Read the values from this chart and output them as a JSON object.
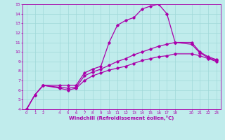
{
  "title": "",
  "xlabel": "Windchill (Refroidissement éolien,°C)",
  "ylabel": "",
  "xlim": [
    -0.5,
    23.5
  ],
  "ylim": [
    4,
    15
  ],
  "xticks": [
    0,
    1,
    2,
    4,
    5,
    6,
    7,
    8,
    9,
    10,
    11,
    12,
    13,
    14,
    15,
    16,
    17,
    18,
    20,
    21,
    22,
    23
  ],
  "yticks": [
    4,
    5,
    6,
    7,
    8,
    9,
    10,
    11,
    12,
    13,
    14,
    15
  ],
  "bg_color": "#c0ecec",
  "grid_color": "#a0d8d8",
  "line_color": "#aa00aa",
  "lines": [
    {
      "x": [
        0,
        1,
        2,
        4,
        5,
        6,
        7,
        8,
        9,
        10,
        11,
        12,
        13,
        14,
        15,
        16,
        17,
        18,
        20,
        21,
        22,
        23
      ],
      "y": [
        4.0,
        5.5,
        6.5,
        6.5,
        6.5,
        6.5,
        7.8,
        8.2,
        8.5,
        11.0,
        12.8,
        13.3,
        13.6,
        14.5,
        14.8,
        15.0,
        14.0,
        11.0,
        11.0,
        10.0,
        9.5,
        9.2
      ],
      "marker": "D",
      "markersize": 1.8,
      "linewidth": 0.9
    },
    {
      "x": [
        0,
        1,
        2,
        4,
        5,
        6,
        7,
        8,
        9,
        10,
        11,
        12,
        13,
        14,
        15,
        16,
        17,
        18,
        20,
        21,
        22,
        23
      ],
      "y": [
        4.0,
        5.5,
        6.5,
        6.3,
        6.2,
        6.3,
        7.5,
        7.9,
        8.2,
        8.6,
        9.0,
        9.3,
        9.7,
        10.0,
        10.3,
        10.6,
        10.8,
        11.0,
        10.8,
        9.9,
        9.4,
        9.1
      ],
      "marker": "D",
      "markersize": 1.8,
      "linewidth": 0.9
    },
    {
      "x": [
        0,
        1,
        2,
        4,
        5,
        6,
        7,
        8,
        9,
        10,
        11,
        12,
        13,
        14,
        15,
        16,
        17,
        18,
        20,
        21,
        22,
        23
      ],
      "y": [
        4.0,
        5.5,
        6.5,
        6.2,
        6.0,
        6.2,
        7.0,
        7.5,
        7.8,
        8.1,
        8.3,
        8.5,
        8.8,
        9.1,
        9.3,
        9.5,
        9.6,
        9.8,
        9.8,
        9.6,
        9.3,
        9.0
      ],
      "marker": "D",
      "markersize": 1.8,
      "linewidth": 0.9
    }
  ]
}
